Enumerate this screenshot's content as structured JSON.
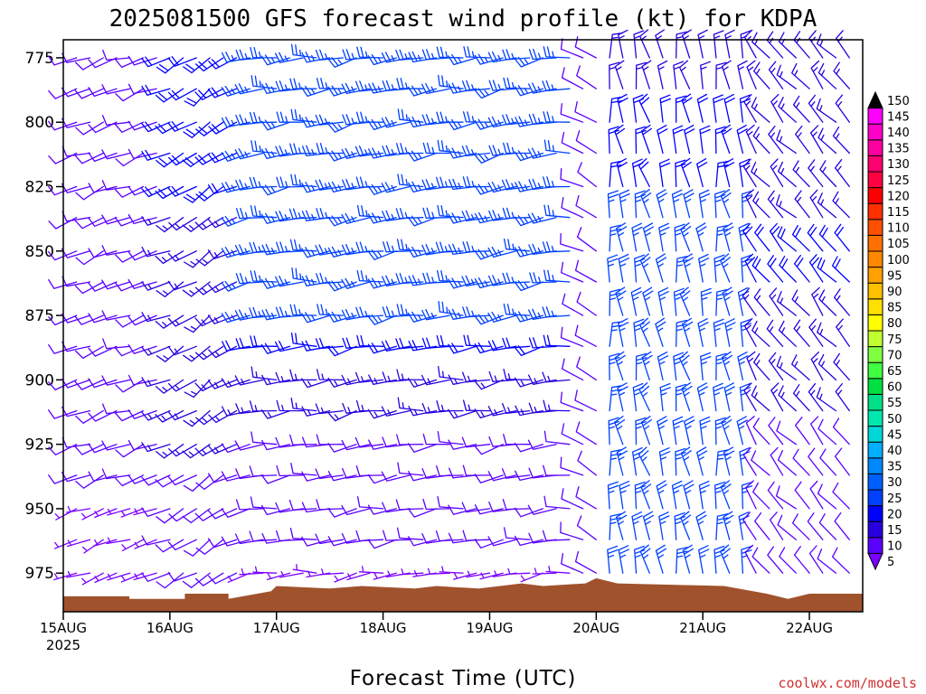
{
  "chart_data": {
    "type": "wind-barb-profile",
    "title": "2025081500 GFS forecast wind profile (kt) for KDPA",
    "xlabel": "Forecast Time (UTC)",
    "credit": "coolwx.com/models",
    "y_axis": {
      "ticks": [
        "775",
        "800",
        "825",
        "850",
        "875",
        "900",
        "925",
        "950",
        "975"
      ],
      "range": [
        768,
        990
      ],
      "inverted": true,
      "units": "hPa"
    },
    "x_axis": {
      "ticks": [
        "15AUG",
        "16AUG",
        "17AUG",
        "18AUG",
        "19AUG",
        "20AUG",
        "21AUG",
        "22AUG"
      ],
      "first_tick_sublabel": "2025",
      "range_days": [
        0,
        7.5
      ]
    },
    "colorbar": {
      "ticks": [
        "5",
        "10",
        "15",
        "20",
        "25",
        "30",
        "35",
        "40",
        "45",
        "50",
        "55",
        "60",
        "65",
        "70",
        "75",
        "80",
        "85",
        "90",
        "95",
        "100",
        "105",
        "110",
        "115",
        "120",
        "125",
        "130",
        "135",
        "140",
        "145",
        "150"
      ],
      "colors": [
        "#7a00ff",
        "#5a00ff",
        "#2800e0",
        "#0000ff",
        "#0040ff",
        "#0060ff",
        "#0088ff",
        "#00b0ff",
        "#00d8d8",
        "#00e8b0",
        "#00e088",
        "#00e040",
        "#40ff40",
        "#80ff40",
        "#c0ff30",
        "#ffff00",
        "#ffe000",
        "#ffc000",
        "#ffa000",
        "#ff8800",
        "#ff7000",
        "#ff5000",
        "#ff3000",
        "#ff0000",
        "#ff0040",
        "#ff0070",
        "#ff00a0",
        "#ff00c8",
        "#ff00ff",
        "#000000"
      ],
      "units": "kt"
    },
    "terrain_color": "#a0522d",
    "levels_hpa": [
      775,
      787,
      800,
      812,
      825,
      837,
      850,
      862,
      875,
      887,
      900,
      912,
      925,
      937,
      950,
      962,
      975
    ],
    "periods": [
      {
        "from_day": 0.0,
        "to_day": 1.0,
        "direction_deg": 250,
        "levels_speed_kt": {
          "775": 12,
          "800": 11,
          "825": 12,
          "850": 10,
          "875": 9,
          "900": 9,
          "925": 8,
          "950": 7,
          "975": 6
        }
      },
      {
        "from_day": 1.0,
        "to_day": 1.75,
        "direction_deg": 240,
        "levels_speed_kt": {
          "775": 22,
          "800": 20,
          "825": 18,
          "850": 16,
          "875": 14,
          "900": 14,
          "925": 13,
          "950": 11,
          "975": 9
        }
      },
      {
        "from_day": 1.75,
        "to_day": 4.85,
        "direction_deg": 262,
        "levels_speed_kt": {
          "775": 24,
          "800": 25,
          "825": 24,
          "850": 25,
          "875": 23,
          "900": 17,
          "925": 11,
          "950": 8,
          "975": 7
        }
      },
      {
        "from_day": 4.85,
        "to_day": 5.05,
        "direction_deg": 300,
        "levels_speed_kt": {
          "775": 8,
          "800": 9,
          "825": 9,
          "850": 10,
          "875": 10,
          "900": 10,
          "925": 12,
          "950": 10,
          "975": 8
        }
      },
      {
        "from_day": 5.05,
        "to_day": 6.4,
        "direction_deg": 350,
        "levels_speed_kt": {
          "775": 16,
          "800": 18,
          "825": 22,
          "850": 24,
          "875": 25,
          "900": 25,
          "925": 26,
          "950": 26,
          "975": 23
        }
      },
      {
        "from_day": 6.4,
        "to_day": 7.5,
        "direction_deg": 320,
        "levels_speed_kt": {
          "775": 14,
          "800": 15,
          "825": 16,
          "850": 18,
          "875": 17,
          "900": 14,
          "925": 12,
          "950": 10,
          "975": 9
        }
      }
    ]
  }
}
